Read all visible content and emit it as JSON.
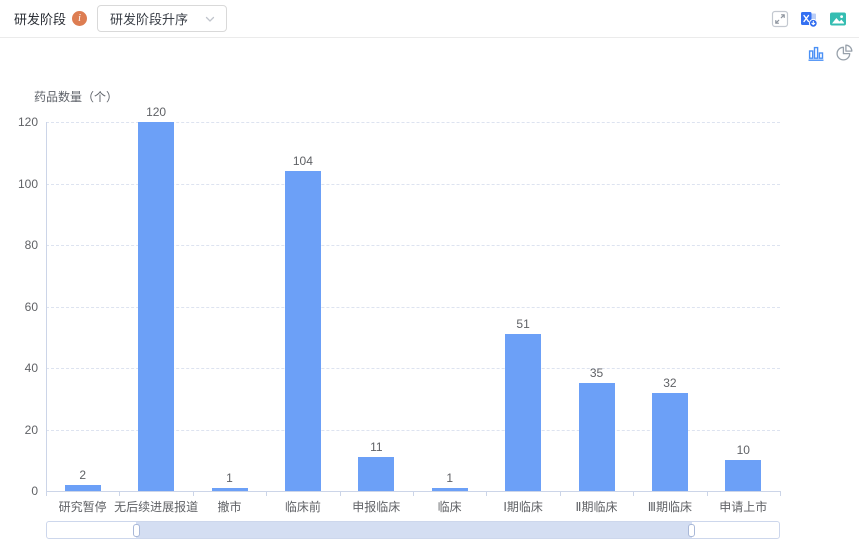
{
  "header": {
    "filter_label": "研发阶段",
    "info_icon_glyph": "i",
    "sort_dropdown": {
      "value": "研发阶段升序"
    },
    "action_icons": [
      "fullscreen-icon",
      "excel-export-icon",
      "image-export-icon"
    ]
  },
  "chart_toolbar": {
    "chart_type_options": [
      "bar",
      "pie"
    ],
    "selected": "bar"
  },
  "chart_data": {
    "type": "bar",
    "title": "",
    "ylabel": "药品数量（个）",
    "xlabel": "",
    "categories": [
      "研究暂停",
      "无后续进展报道",
      "撤市",
      "临床前",
      "申报临床",
      "临床",
      "Ⅰ期临床",
      "Ⅱ期临床",
      "Ⅲ期临床",
      "申请上市"
    ],
    "values": [
      2,
      120,
      1,
      104,
      11,
      1,
      51,
      35,
      32,
      10
    ],
    "ylim": [
      0,
      120
    ],
    "ytick_interval": 20,
    "bar_color": "#6CA0F7",
    "grid": true,
    "grid_style": "dashed",
    "value_labels": true,
    "legend": false
  },
  "datazoom": {
    "start_pct": 12.1,
    "end_pct": 88.1
  },
  "colors": {
    "bar": "#6CA0F7",
    "accent_blue": "#4a90f5",
    "info_icon_orange": "#dd7d52",
    "image_export_teal": "#35bdb2",
    "excel_export_blue": "#3470f2",
    "axis_line": "#ccd5e8",
    "datazoom_window": "#d4def2"
  }
}
